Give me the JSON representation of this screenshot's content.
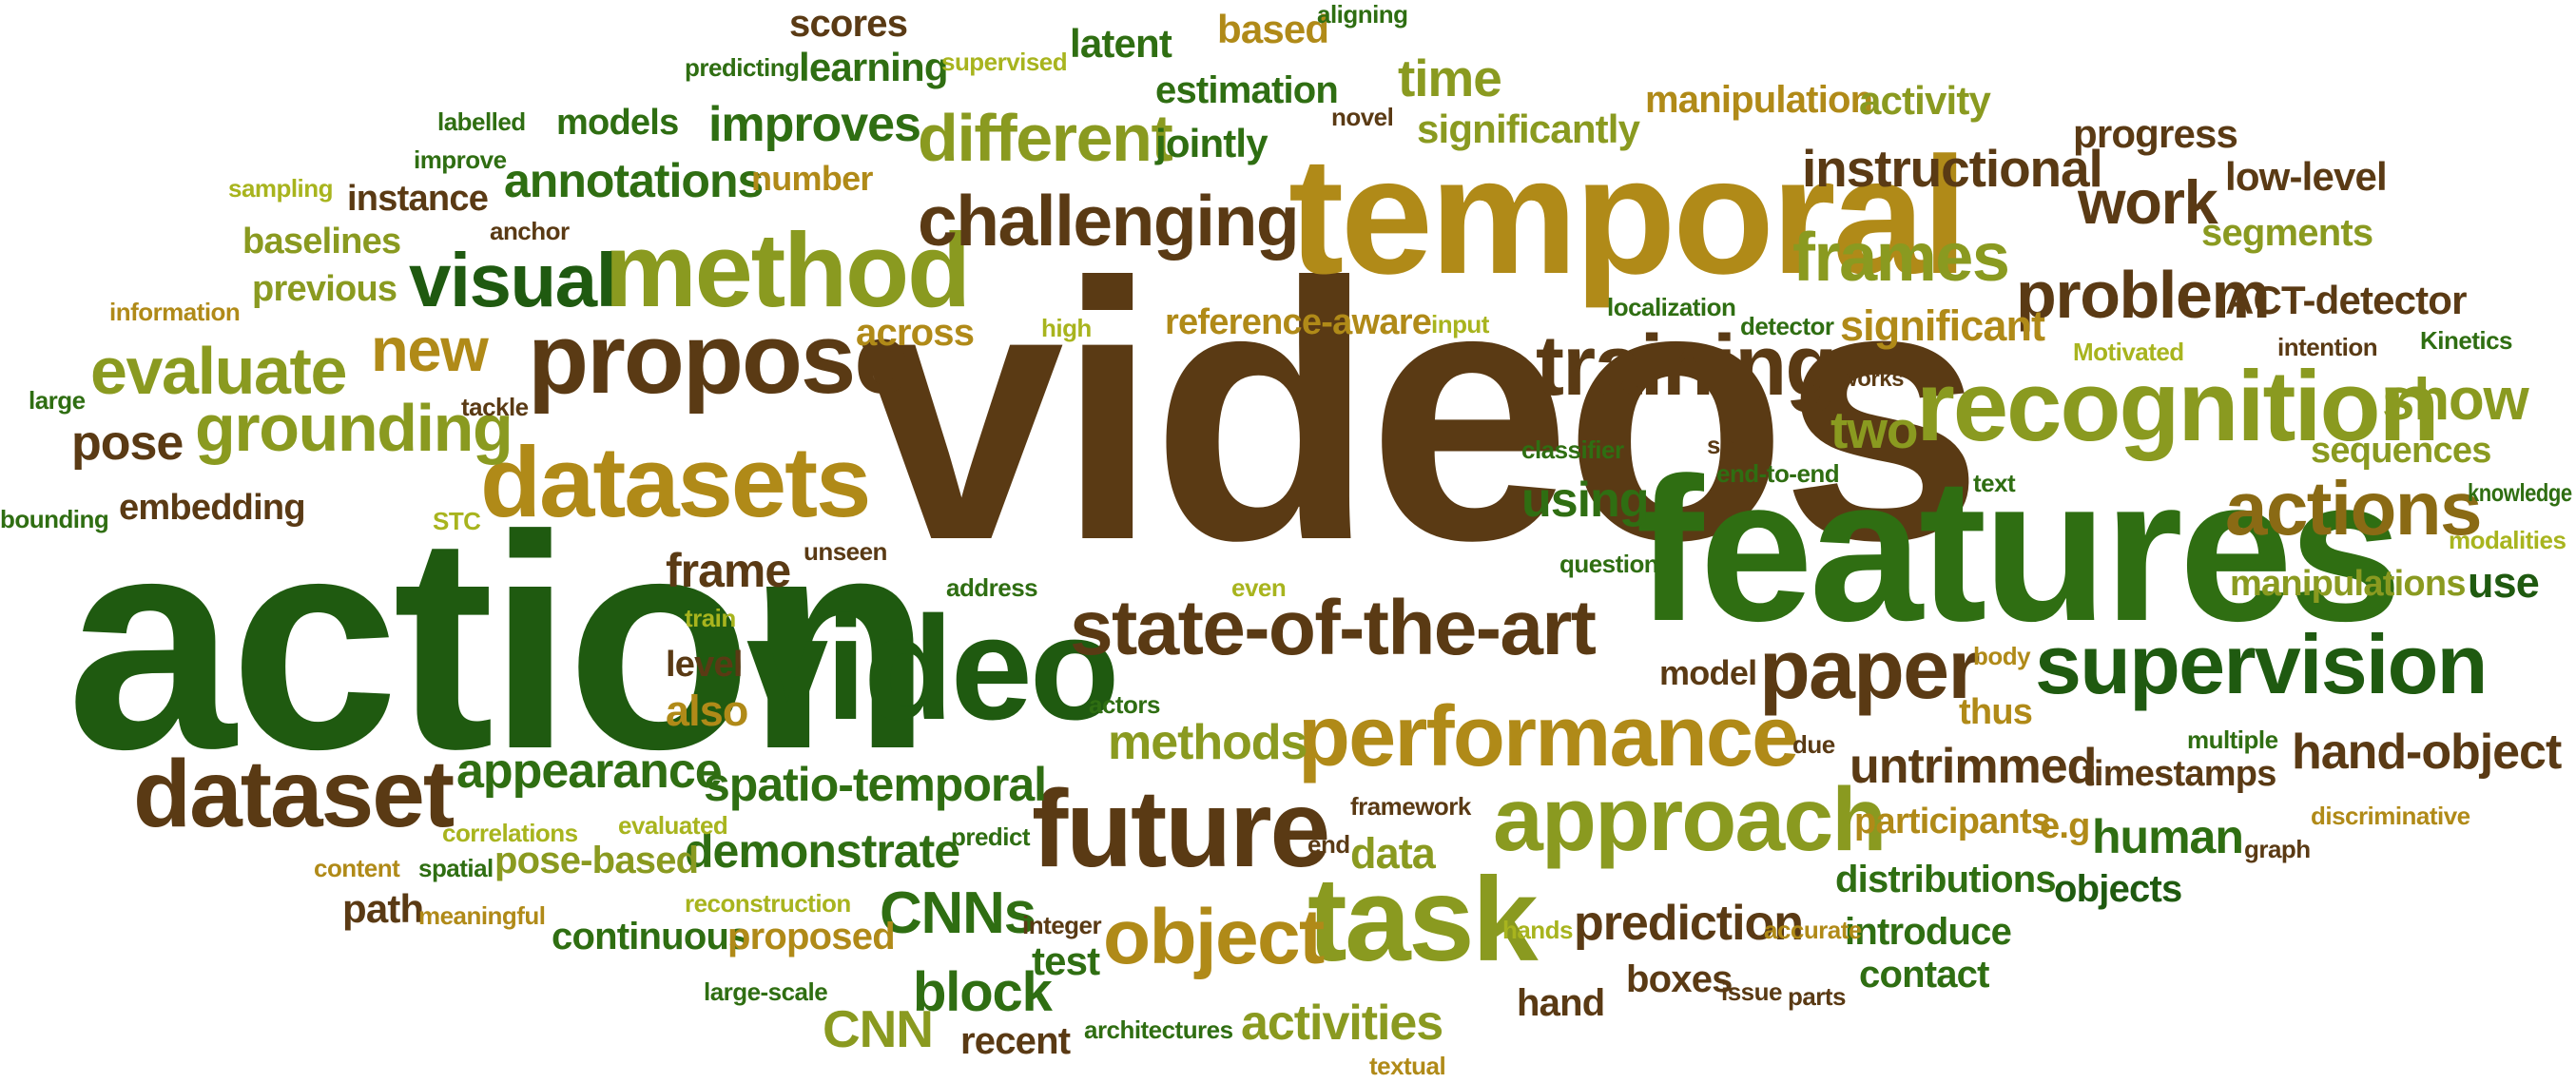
{
  "palette": {
    "brown": "#5a3a14",
    "dark_green": "#1f5a10",
    "green": "#2f6e12",
    "olive": "#8a9a20",
    "gold": "#b08a18",
    "yellow_green": "#a8b41e"
  },
  "words": [
    {
      "text": "videos",
      "color": "#5a3a14"
    },
    {
      "text": "action",
      "color": "#1f5a10"
    },
    {
      "text": "features",
      "color": "#2f6e12"
    },
    {
      "text": "temporal",
      "color": "#b08a18"
    },
    {
      "text": "video",
      "color": "#1f5a10"
    },
    {
      "text": "recognition",
      "color": "#8a9a20"
    },
    {
      "text": "method",
      "color": "#8a9a20"
    },
    {
      "text": "datasets",
      "color": "#b08a18"
    },
    {
      "text": "propose",
      "color": "#5a3a14"
    },
    {
      "text": "task",
      "color": "#8a9a20"
    },
    {
      "text": "future",
      "color": "#5a3a14"
    },
    {
      "text": "approach",
      "color": "#8a9a20"
    },
    {
      "text": "performance",
      "color": "#b08a18"
    },
    {
      "text": "supervision",
      "color": "#1f5a10"
    },
    {
      "text": "state-of-the-art",
      "color": "#5a3a14"
    },
    {
      "text": "dataset",
      "color": "#5a3a14"
    },
    {
      "text": "training",
      "color": "#5a3a14"
    },
    {
      "text": "challenging",
      "color": "#5a3a14"
    },
    {
      "text": "object",
      "color": "#b08a18"
    },
    {
      "text": "paper",
      "color": "#5a3a14"
    },
    {
      "text": "actions",
      "color": "#8a6a14"
    },
    {
      "text": "visual",
      "color": "#1f5a10"
    },
    {
      "text": "grounding",
      "color": "#8a9a20"
    },
    {
      "text": "evaluate",
      "color": "#8a9a20"
    },
    {
      "text": "frames",
      "color": "#8a9a20"
    },
    {
      "text": "different",
      "color": "#8a9a20"
    },
    {
      "text": "instructional",
      "color": "#5a3a14"
    },
    {
      "text": "problem",
      "color": "#5a3a14"
    },
    {
      "text": "work",
      "color": "#5a3a14"
    },
    {
      "text": "show",
      "color": "#8a9a20"
    },
    {
      "text": "new",
      "color": "#b08a18"
    },
    {
      "text": "time",
      "color": "#8a9a20"
    },
    {
      "text": "improves",
      "color": "#2f6e12"
    },
    {
      "text": "annotations",
      "color": "#2f6e12"
    },
    {
      "text": "appearance",
      "color": "#2f6e12"
    },
    {
      "text": "spatio-temporal",
      "color": "#2f6e12"
    },
    {
      "text": "demonstrate",
      "color": "#2f6e12"
    },
    {
      "text": "methods",
      "color": "#8a9a20"
    },
    {
      "text": "untrimmed",
      "color": "#5a3a14"
    },
    {
      "text": "hand-object",
      "color": "#5a3a14"
    },
    {
      "text": "prediction",
      "color": "#5a3a14"
    },
    {
      "text": "CNNs",
      "color": "#2f6e12"
    },
    {
      "text": "block",
      "color": "#2f6e12"
    },
    {
      "text": "activities",
      "color": "#8a9a20"
    },
    {
      "text": "human",
      "color": "#2f6e12"
    },
    {
      "text": "two",
      "color": "#8a9a20"
    },
    {
      "text": "pose",
      "color": "#5a3a14"
    },
    {
      "text": "frame",
      "color": "#5a3a14"
    },
    {
      "text": "using",
      "color": "#2f6e12"
    },
    {
      "text": "data",
      "color": "#8a9a20"
    },
    {
      "text": "also",
      "color": "#b08a18"
    },
    {
      "text": "CNN",
      "color": "#8a9a20"
    },
    {
      "text": "significant",
      "color": "#b08a18"
    },
    {
      "text": "ACT-detector",
      "color": "#5a3a14"
    },
    {
      "text": "segments",
      "color": "#8a9a20"
    },
    {
      "text": "progress",
      "color": "#5a3a14"
    },
    {
      "text": "low-level",
      "color": "#5a3a14"
    },
    {
      "text": "manipulation",
      "color": "#b08a18"
    },
    {
      "text": "activity",
      "color": "#8a9a20"
    },
    {
      "text": "significantly",
      "color": "#8a9a20"
    },
    {
      "text": "estimation",
      "color": "#2f6e12"
    },
    {
      "text": "jointly",
      "color": "#2f6e12"
    },
    {
      "text": "latent",
      "color": "#2f6e12"
    },
    {
      "text": "based",
      "color": "#b08a18"
    },
    {
      "text": "scores",
      "color": "#5a3a14"
    },
    {
      "text": "learning",
      "color": "#2f6e12"
    },
    {
      "text": "models",
      "color": "#2f6e12"
    },
    {
      "text": "instance",
      "color": "#5a3a14"
    },
    {
      "text": "baselines",
      "color": "#8a9a20"
    },
    {
      "text": "previous",
      "color": "#8a9a20"
    },
    {
      "text": "embedding",
      "color": "#5a3a14"
    },
    {
      "text": "reference-aware",
      "color": "#b08a18"
    },
    {
      "text": "sequences",
      "color": "#8a9a20"
    },
    {
      "text": "manipulations",
      "color": "#8a9a20"
    },
    {
      "text": "use",
      "color": "#1f5a10"
    },
    {
      "text": "timestamps",
      "color": "#5a3a14"
    },
    {
      "text": "participants",
      "color": "#b08a18"
    },
    {
      "text": "e.g",
      "color": "#b08a18"
    },
    {
      "text": "distributions",
      "color": "#2f6e12"
    },
    {
      "text": "objects",
      "color": "#1f5a10"
    },
    {
      "text": "introduce",
      "color": "#2f6e12"
    },
    {
      "text": "contact",
      "color": "#2f6e12"
    },
    {
      "text": "boxes",
      "color": "#5a3a14"
    },
    {
      "text": "hand",
      "color": "#5a3a14"
    },
    {
      "text": "recent",
      "color": "#5a3a14"
    },
    {
      "text": "test",
      "color": "#2f6e12"
    },
    {
      "text": "continuous",
      "color": "#2f6e12"
    },
    {
      "text": "proposed",
      "color": "#b08a18"
    },
    {
      "text": "pose-based",
      "color": "#8a9a20"
    },
    {
      "text": "path",
      "color": "#5a3a14"
    },
    {
      "text": "level",
      "color": "#5a3a14"
    },
    {
      "text": "model",
      "color": "#5a3a14"
    },
    {
      "text": "thus",
      "color": "#b08a18"
    },
    {
      "text": "across",
      "color": "#b08a18"
    },
    {
      "text": "number",
      "color": "#b08a18"
    },
    {
      "text": "supervised",
      "color": "#a8b41e"
    },
    {
      "text": "predicting",
      "color": "#2f6e12"
    },
    {
      "text": "aligning",
      "color": "#2f6e12"
    },
    {
      "text": "labelled",
      "color": "#2f6e12"
    },
    {
      "text": "improve",
      "color": "#2f6e12"
    },
    {
      "text": "sampling",
      "color": "#a8b41e"
    },
    {
      "text": "anchor",
      "color": "#5a3a14"
    },
    {
      "text": "information",
      "color": "#b08a18"
    },
    {
      "text": "large",
      "color": "#2f6e12"
    },
    {
      "text": "tackle",
      "color": "#5a3a14"
    },
    {
      "text": "bounding",
      "color": "#2f6e12"
    },
    {
      "text": "STC",
      "color": "#a8b41e"
    },
    {
      "text": "unseen",
      "color": "#5a3a14"
    },
    {
      "text": "address",
      "color": "#2f6e12"
    },
    {
      "text": "train",
      "color": "#a8b41e"
    },
    {
      "text": "even",
      "color": "#a8b41e"
    },
    {
      "text": "question",
      "color": "#2f6e12"
    },
    {
      "text": "high",
      "color": "#a8b41e"
    },
    {
      "text": "input",
      "color": "#a8b41e"
    },
    {
      "text": "localization",
      "color": "#2f6e12"
    },
    {
      "text": "detector",
      "color": "#2f6e12"
    },
    {
      "text": "classifier",
      "color": "#2f6e12"
    },
    {
      "text": "set",
      "color": "#5a3a14"
    },
    {
      "text": "works",
      "color": "#5a3a14"
    },
    {
      "text": "end-to-end",
      "color": "#2f6e12"
    },
    {
      "text": "text",
      "color": "#2f6e12"
    },
    {
      "text": "Motivated",
      "color": "#a8b41e"
    },
    {
      "text": "intention",
      "color": "#5a3a14"
    },
    {
      "text": "Kinetics",
      "color": "#2f6e12"
    },
    {
      "text": "knowledge",
      "color": "#2f6e12"
    },
    {
      "text": "modalities",
      "color": "#a8b41e"
    },
    {
      "text": "novel",
      "color": "#5a3a14"
    },
    {
      "text": "body",
      "color": "#b08a18"
    },
    {
      "text": "actors",
      "color": "#2f6e12"
    },
    {
      "text": "due",
      "color": "#5a3a14"
    },
    {
      "text": "multiple",
      "color": "#2f6e12"
    },
    {
      "text": "discriminative",
      "color": "#b08a18"
    },
    {
      "text": "graph",
      "color": "#5a3a14"
    },
    {
      "text": "framework",
      "color": "#5a3a14"
    },
    {
      "text": "end",
      "color": "#5a3a14"
    },
    {
      "text": "predict",
      "color": "#2f6e12"
    },
    {
      "text": "correlations",
      "color": "#a8b41e"
    },
    {
      "text": "evaluated",
      "color": "#a8b41e"
    },
    {
      "text": "content",
      "color": "#b08a18"
    },
    {
      "text": "spatial",
      "color": "#2f6e12"
    },
    {
      "text": "meaningful",
      "color": "#b08a18"
    },
    {
      "text": "reconstruction",
      "color": "#a8b41e"
    },
    {
      "text": "integer",
      "color": "#5a3a14"
    },
    {
      "text": "hands",
      "color": "#a8b41e"
    },
    {
      "text": "accurate",
      "color": "#b08a18"
    },
    {
      "text": "issue",
      "color": "#5a3a14"
    },
    {
      "text": "parts",
      "color": "#5a3a14"
    },
    {
      "text": "large-scale",
      "color": "#2f6e12"
    },
    {
      "text": "architectures",
      "color": "#2f6e12"
    },
    {
      "text": "textual",
      "color": "#b08a18"
    }
  ]
}
